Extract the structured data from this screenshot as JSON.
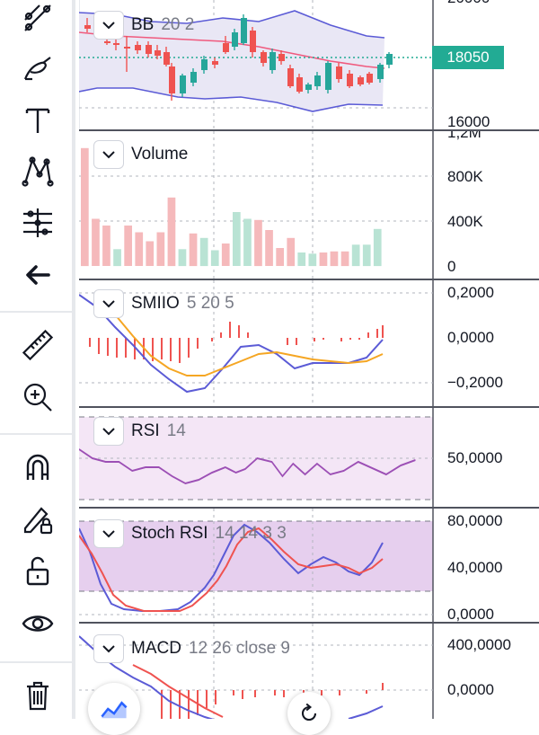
{
  "bb": {
    "name": "BB",
    "params": "20 2",
    "price_label": "18050",
    "axis_top_label": "20000",
    "axis_bottom_label": "16000",
    "colors": {
      "up": "#26a69a",
      "down": "#ef5350",
      "basis": "#f05a7e",
      "band": "#5b5bd6",
      "fill": "#e9e7f5"
    }
  },
  "volume": {
    "name": "Volume",
    "axis": [
      "1,2M",
      "800K",
      "400K",
      "0"
    ],
    "bars": [
      {
        "v": 1050000,
        "dir": "down"
      },
      {
        "v": 420000,
        "dir": "down"
      },
      {
        "v": 360000,
        "dir": "down"
      },
      {
        "v": 150000,
        "dir": "up"
      },
      {
        "v": 360000,
        "dir": "down"
      },
      {
        "v": 300000,
        "dir": "down"
      },
      {
        "v": 220000,
        "dir": "down"
      },
      {
        "v": 300000,
        "dir": "down"
      },
      {
        "v": 610000,
        "dir": "down"
      },
      {
        "v": 150000,
        "dir": "up"
      },
      {
        "v": 290000,
        "dir": "down"
      },
      {
        "v": 250000,
        "dir": "up"
      },
      {
        "v": 140000,
        "dir": "up"
      },
      {
        "v": 200000,
        "dir": "down"
      },
      {
        "v": 480000,
        "dir": "up"
      },
      {
        "v": 420000,
        "dir": "up"
      },
      {
        "v": 410000,
        "dir": "down"
      },
      {
        "v": 320000,
        "dir": "down"
      },
      {
        "v": 160000,
        "dir": "down"
      },
      {
        "v": 250000,
        "dir": "down"
      },
      {
        "v": 120000,
        "dir": "up"
      },
      {
        "v": 110000,
        "dir": "up"
      },
      {
        "v": 120000,
        "dir": "down"
      },
      {
        "v": 130000,
        "dir": "down"
      },
      {
        "v": 130000,
        "dir": "down"
      },
      {
        "v": 190000,
        "dir": "up"
      },
      {
        "v": 190000,
        "dir": "up"
      },
      {
        "v": 330000,
        "dir": "up"
      }
    ]
  },
  "smiio": {
    "name": "SMIIO",
    "params": "5 20 5",
    "axis": [
      "0,2000",
      "0,0000",
      "−0,2000"
    ]
  },
  "rsi": {
    "name": "RSI",
    "params": "14",
    "axis": [
      "50,0000"
    ]
  },
  "stochrsi": {
    "name": "Stoch RSI",
    "params": "14 14 3 3",
    "axis": [
      "80,0000",
      "40,0000",
      "0,0000"
    ]
  },
  "macd": {
    "name": "MACD",
    "params": "12 26 close 9",
    "axis": [
      "400,0000",
      "0,0000"
    ]
  },
  "toolbar": {
    "icons": [
      "trend-line-icon",
      "brush-icon",
      "text-icon",
      "pattern-icon",
      "prediction-icon",
      "back-arrow-icon",
      "ruler-icon",
      "zoom-in-icon",
      "magnet-icon",
      "lock-drawings-icon",
      "unlock-icon",
      "eye-icon",
      "trash-icon"
    ]
  }
}
